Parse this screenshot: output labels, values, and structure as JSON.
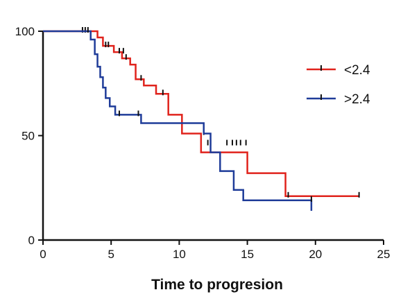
{
  "chart_data": {
    "type": "line",
    "subtype": "kaplan-meier-step",
    "title": "",
    "xlabel": "Time to progresion",
    "ylabel": "",
    "xlim": [
      0,
      25
    ],
    "ylim": [
      0,
      100
    ],
    "xticks": [
      "0",
      "5",
      "10",
      "15",
      "20",
      "25"
    ],
    "yticks": [
      "0",
      "50",
      "100"
    ],
    "grid": false,
    "legend_position": "right",
    "series": [
      {
        "name": "<2.4",
        "color": "#e0231c",
        "x": [
          0,
          4.0,
          4.4,
          5.2,
          5.8,
          6.4,
          6.8,
          7.4,
          8.3,
          9.2,
          10.2,
          11.6,
          15.0,
          17.8,
          23.2
        ],
        "y": [
          100,
          97,
          93,
          90,
          87,
          84,
          77,
          74,
          70,
          60,
          51,
          42,
          32,
          21,
          21
        ],
        "censored_x": [
          2.9,
          3.1,
          4.6,
          4.8,
          5.6,
          5.9,
          6.1,
          7.2,
          8.8,
          11.8,
          12.3,
          13.5,
          13.9,
          14.2,
          14.5,
          14.9,
          18.0,
          23.2
        ],
        "censored_y": [
          100,
          100,
          93,
          93,
          90,
          90,
          87,
          77,
          70,
          51,
          46,
          46,
          46,
          46,
          46,
          46,
          21,
          21
        ]
      },
      {
        "name": ">2.4",
        "color": "#1f3c99",
        "x": [
          0,
          3.5,
          3.8,
          4.0,
          4.2,
          4.4,
          4.6,
          4.9,
          5.3,
          7.2,
          11.8,
          12.3,
          13.0,
          14.0,
          14.7,
          19.7
        ],
        "y": [
          100,
          96,
          89,
          83,
          78,
          73,
          68,
          64,
          60,
          56,
          51,
          42,
          33,
          24,
          19,
          14
        ],
        "censored_x": [
          3.3,
          5.6,
          7.0,
          12.1,
          19.7
        ],
        "censored_y": [
          100,
          60,
          60,
          46,
          19
        ]
      }
    ]
  }
}
